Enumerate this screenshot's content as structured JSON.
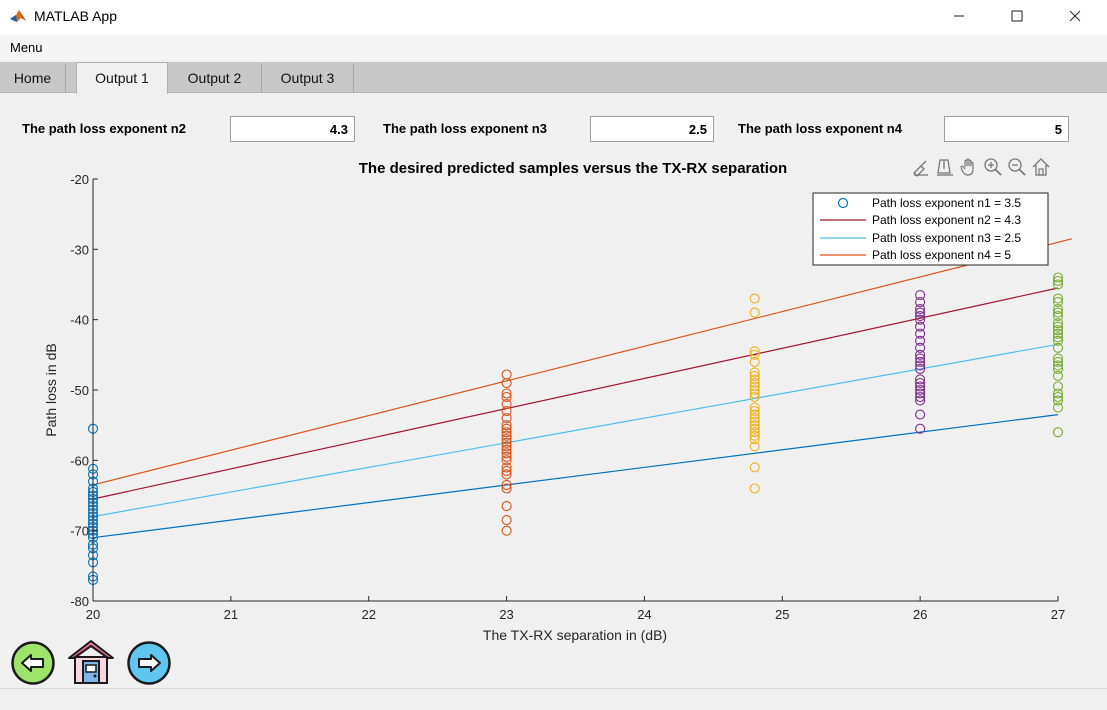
{
  "window": {
    "title": "MATLAB App"
  },
  "menubar": {
    "menu_label": "Menu"
  },
  "tabs": [
    {
      "label": "Home",
      "active": false
    },
    {
      "label": "Output 1",
      "active": true
    },
    {
      "label": "Output 2",
      "active": false
    },
    {
      "label": "Output 3",
      "active": false
    }
  ],
  "params": {
    "n2_label": "The path loss exponent n2",
    "n2_value": "4.3",
    "n3_label": "The path loss exponent n3",
    "n3_value": "2.5",
    "n4_label": "The path loss exponent n4",
    "n4_value": "5"
  },
  "plot_toolbar": [
    "brush-icon",
    "datatip-icon",
    "pan-icon",
    "zoom-in-icon",
    "zoom-out-icon",
    "restore-view-icon"
  ],
  "nav_buttons": [
    "back-arrow-icon",
    "home-house-icon",
    "forward-arrow-icon"
  ],
  "colors": {
    "n1": "#0072BD",
    "n2": "#A2142F",
    "n3": "#4DBEEE",
    "n4": "#D95319",
    "s20": "#0072BD",
    "s23": "#D95319",
    "s25": "#EDB120",
    "s26": "#7E2F8E",
    "s27": "#77AC30"
  },
  "chart_data": {
    "type": "scatter",
    "title": "The desired predicted samples versus the TX-RX separation",
    "xlabel": "The TX-RX separation  in (dB)",
    "ylabel": "Path loss in dB",
    "xlim": [
      20,
      27
    ],
    "ylim": [
      -80,
      -20
    ],
    "xticks": [
      "20",
      "21",
      "22",
      "23",
      "24",
      "25",
      "26",
      "27"
    ],
    "yticks": [
      "-20",
      "-30",
      "-40",
      "-50",
      "-60",
      "-70",
      "-80"
    ],
    "legend_position": "top-right",
    "legend": [
      "Path loss exponent n1 = 3.5",
      "Path loss exponent n2 = 4.3",
      "Path loss exponent n3 = 2.5",
      "Path loss exponent n4 = 5"
    ],
    "scatter_groups": [
      {
        "x": 20,
        "color_key": "s20",
        "y": [
          -55.5,
          -61.2,
          -62,
          -63,
          -64,
          -64.5,
          -65,
          -65.5,
          -66,
          -66.5,
          -67,
          -67.5,
          -68,
          -68.5,
          -69,
          -69.5,
          -70,
          -70.5,
          -71,
          -72,
          -72.5,
          -73.5,
          -74.5,
          -76.5,
          -77
        ]
      },
      {
        "x": 23,
        "color_key": "s23",
        "y": [
          -47.8,
          -49,
          -50.5,
          -51,
          -52,
          -53,
          -54,
          -55,
          -55.5,
          -56,
          -56.5,
          -57,
          -57.5,
          -58,
          -58.5,
          -59,
          -59.5,
          -60,
          -61,
          -61.5,
          -62,
          -63.5,
          -64,
          -66.5,
          -68.5,
          -70
        ]
      },
      {
        "x": 24.8,
        "color_key": "s25",
        "y": [
          -37,
          -39,
          -44.5,
          -45,
          -46,
          -47.5,
          -48,
          -48.5,
          -49,
          -49.5,
          -50,
          -50.5,
          -51,
          -52.5,
          -53,
          -53.5,
          -54,
          -54.5,
          -55,
          -55.5,
          -56,
          -56.5,
          -57,
          -58,
          -61,
          -64
        ]
      },
      {
        "x": 26,
        "color_key": "s26",
        "y": [
          -36.5,
          -37.5,
          -38.5,
          -39,
          -39.5,
          -40,
          -41,
          -42,
          -43,
          -44,
          -45,
          -45.5,
          -46,
          -46.5,
          -47,
          -48.5,
          -49,
          -49.5,
          -50,
          -50.5,
          -51,
          -51.5,
          -53.5,
          -55.5
        ]
      },
      {
        "x": 27,
        "color_key": "s27",
        "y": [
          -34,
          -34.5,
          -35,
          -37,
          -37.5,
          -38.5,
          -39,
          -39.5,
          -40.5,
          -41,
          -41.5,
          -42,
          -42.5,
          -43,
          -44,
          -45.5,
          -46,
          -46.5,
          -47,
          -48,
          -49.5,
          -50.5,
          -51,
          -51.5,
          -52.5,
          -56
        ]
      }
    ],
    "series": [
      {
        "name": "Path loss exponent n2 = 4.3",
        "color_key": "n2",
        "x": [
          20,
          27
        ],
        "y": [
          -65.5,
          -35.5
        ]
      },
      {
        "name": "Path loss exponent n3 = 2.5",
        "color_key": "n3",
        "x": [
          20,
          27
        ],
        "y": [
          -68,
          -43.5
        ]
      },
      {
        "name": "Path loss exponent n4 = 5",
        "color_key": "n4",
        "x": [
          20,
          27.1
        ],
        "y": [
          -63.5,
          -28.5
        ]
      },
      {
        "name": "Path loss exponent n1 = 3.5",
        "color_key": "n1",
        "x": [
          20,
          27
        ],
        "y": [
          -71,
          -53.5
        ]
      }
    ]
  }
}
